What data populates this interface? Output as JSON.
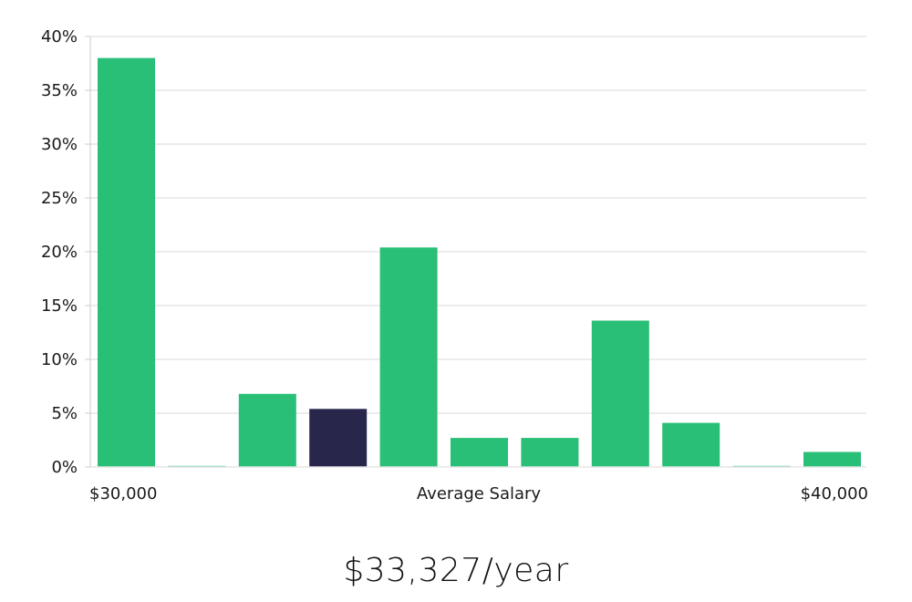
{
  "chart_data": {
    "type": "bar",
    "xlabel": "Average Salary",
    "x_range_labels": {
      "min": "$30,000",
      "max": "$40,000"
    },
    "ylim": [
      0,
      40
    ],
    "y_ticks": [
      0,
      5,
      10,
      15,
      20,
      25,
      30,
      35,
      40
    ],
    "y_tick_labels": [
      "0%",
      "5%",
      "10%",
      "15%",
      "20%",
      "25%",
      "30%",
      "35%",
      "40%"
    ],
    "values": [
      38,
      0.1,
      6.8,
      5.4,
      20.4,
      2.7,
      2.7,
      13.6,
      4.1,
      0.1,
      1.4
    ],
    "highlight_index": 3,
    "colors": {
      "bar": "#29bf76",
      "highlight": "#29264b",
      "grid": "#e6e6e6",
      "axis": "#cccccc"
    },
    "grid": true
  },
  "summary": {
    "salary": "$33,327/year"
  }
}
